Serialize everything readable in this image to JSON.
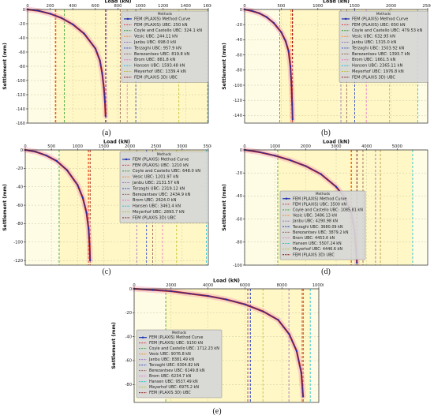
{
  "figure": {
    "captions": [
      "(a)",
      "(b)",
      "(c)",
      "(d)",
      "(e)"
    ]
  },
  "chart_data": [
    {
      "type": "line",
      "panel": "a",
      "xlabel": "Load (kN)",
      "ylabel": "Settlement (mm)",
      "xlim": [
        0,
        1600
      ],
      "ylim": [
        -160,
        0
      ],
      "xticks": [
        0,
        200,
        400,
        600,
        800,
        1000,
        1200,
        1400,
        1600
      ],
      "yticks": [
        0,
        -20,
        -40,
        -60,
        -80,
        -100,
        -120,
        -140,
        -160
      ],
      "grid": true,
      "legend_title": "Methods",
      "legend_position": "top-right",
      "series": [
        {
          "name": "FEM (PLAXIS) Method Curve",
          "x": [
            0,
            100,
            200,
            300,
            400,
            500,
            600,
            640,
            660,
            675,
            685,
            690
          ],
          "y": [
            0,
            -2,
            -6,
            -12,
            -21,
            -34,
            -55,
            -72,
            -90,
            -110,
            -130,
            -150
          ]
        }
      ],
      "reference_lines": [
        {
          "name": "FEM (PLAXIS) UBC: 250 kN",
          "value": 250,
          "color": "#d62728",
          "dash": "3,2"
        },
        {
          "name": "Coyle and Castello UBC: 324.1 kN",
          "value": 324.1,
          "color": "#2ca02c",
          "dash": "3,2"
        },
        {
          "name": "Vesic UBC: 244.11 kN",
          "value": 244.11,
          "color": "#ff7f0e",
          "dash": "3,2"
        },
        {
          "name": "Janbu UBC: 698.0 kN",
          "value": 698.0,
          "color": "#9467bd",
          "dash": "3,2"
        },
        {
          "name": "Terzaghi UBC: 957.9 kN",
          "value": 957.9,
          "color": "#1f3fbf",
          "dash": "3,2"
        },
        {
          "name": "Berezantsev UBC: 819.8 kN",
          "value": 819.8,
          "color": "#8c564b",
          "dash": "3,2"
        },
        {
          "name": "Brom UBC: 881.8 kN",
          "value": 881.8,
          "color": "#e377c2",
          "dash": "3,2"
        },
        {
          "name": "Hansen UBC: 1593.48 kN",
          "value": 1593.48,
          "color": "#17becf",
          "dash": "3,2"
        },
        {
          "name": "Meyerhof UBC: 1339.4 kN",
          "value": 1339.4,
          "color": "#bcbd22",
          "dash": "3,2"
        },
        {
          "name": "FEM (PLAXIS 3D) UBC",
          "value": 690,
          "color": "#8b0000",
          "dash": "3,2"
        }
      ]
    },
    {
      "type": "line",
      "panel": "b",
      "xlabel": "Load (kN)",
      "ylabel": "Settlement (mm)",
      "xlim": [
        0,
        2500
      ],
      "ylim": [
        -150,
        0
      ],
      "xticks": [
        0,
        500,
        1000,
        1500,
        2000,
        2500
      ],
      "yticks": [
        0,
        -20,
        -40,
        -60,
        -80,
        -100,
        -120,
        -140
      ],
      "grid": true,
      "legend_title": "Methods",
      "legend_position": "top-right",
      "series": [
        {
          "name": "FEM (PLAXIS) Method Curve",
          "x": [
            0,
            100,
            200,
            300,
            400,
            500,
            560,
            600,
            625,
            640,
            650,
            655
          ],
          "y": [
            0,
            -2,
            -5,
            -10,
            -18,
            -30,
            -42,
            -55,
            -75,
            -100,
            -125,
            -145
          ]
        }
      ],
      "reference_lines": [
        {
          "name": "FEM (PLAXIS) UBC: 650 kN",
          "value": 650,
          "color": "#d62728",
          "dash": "3,2"
        },
        {
          "name": "Coyle and Castello UBC: 479.53 kN",
          "value": 479.53,
          "color": "#2ca02c",
          "dash": "3,2"
        },
        {
          "name": "Vesic UBC: 632.95 kN",
          "value": 632.95,
          "color": "#ff7f0e",
          "dash": "3,2"
        },
        {
          "name": "Janbu UBC: 1315.0 kN",
          "value": 1315.0,
          "color": "#9467bd",
          "dash": "3,2"
        },
        {
          "name": "Terzaghi UBC: 1503.92 kN",
          "value": 1503.92,
          "color": "#1f3fbf",
          "dash": "3,2"
        },
        {
          "name": "Berezantsev UBC: 1393.7 kN",
          "value": 1393.7,
          "color": "#8c564b",
          "dash": "3,2"
        },
        {
          "name": "Brom UBC: 1661.5 kN",
          "value": 1661.5,
          "color": "#e377c2",
          "dash": "3,2"
        },
        {
          "name": "Hansen UBC: 2365.11 kN",
          "value": 2365.11,
          "color": "#17becf",
          "dash": "3,2"
        },
        {
          "name": "Meyerhof UBC: 1976.8 kN",
          "value": 1976.8,
          "color": "#bcbd22",
          "dash": "3,2"
        },
        {
          "name": "FEM (PLAXIS 3D) UBC",
          "value": 655,
          "color": "#8b0000",
          "dash": "3,2"
        }
      ]
    },
    {
      "type": "line",
      "panel": "c",
      "xlabel": "Load (kN)",
      "ylabel": "Settlement (mm)",
      "xlim": [
        0,
        3500
      ],
      "ylim": [
        -125,
        0
      ],
      "xticks": [
        0,
        500,
        1000,
        1500,
        2000,
        2500,
        3000,
        3500
      ],
      "yticks": [
        0,
        -20,
        -40,
        -60,
        -80,
        -100,
        -120
      ],
      "grid": true,
      "legend_title": "Methods",
      "legend_position": "top-right",
      "series": [
        {
          "name": "FEM (PLAXIS) Method Curve",
          "x": [
            0,
            200,
            400,
            600,
            800,
            1000,
            1100,
            1170,
            1210,
            1230,
            1240
          ],
          "y": [
            0,
            -2,
            -6,
            -12,
            -22,
            -38,
            -52,
            -68,
            -85,
            -102,
            -120
          ]
        }
      ],
      "reference_lines": [
        {
          "name": "FEM (PLAXIS) UBC: 1210 kN",
          "value": 1210,
          "color": "#d62728",
          "dash": "3,2"
        },
        {
          "name": "Coyle and Castello UBC: 648.0 kN",
          "value": 648.0,
          "color": "#2ca02c",
          "dash": "3,2"
        },
        {
          "name": "Vesic UBC: 1201.97 kN",
          "value": 1201.97,
          "color": "#ff7f0e",
          "dash": "3,2"
        },
        {
          "name": "Janbu UBC: 2131.57 kN",
          "value": 2131.57,
          "color": "#9467bd",
          "dash": "3,2"
        },
        {
          "name": "Terzaghi UBC: 2319.12 kN",
          "value": 2319.12,
          "color": "#1f3fbf",
          "dash": "3,2"
        },
        {
          "name": "Berezantsev UBC: 2434.9 kN",
          "value": 2434.9,
          "color": "#8c564b",
          "dash": "3,2"
        },
        {
          "name": "Brom UBC: 2624.0 kN",
          "value": 2624.0,
          "color": "#e377c2",
          "dash": "3,2"
        },
        {
          "name": "Hansen UBC: 3461.4 kN",
          "value": 3461.4,
          "color": "#17becf",
          "dash": "3,2"
        },
        {
          "name": "Meyerhof UBC: 2893.7 kN",
          "value": 2893.7,
          "color": "#bcbd22",
          "dash": "3,2"
        },
        {
          "name": "FEM (PLAXIS 3D) UBC",
          "value": 1240,
          "color": "#8b0000",
          "dash": "3,2"
        }
      ]
    },
    {
      "type": "line",
      "panel": "d",
      "xlabel": "Load (kN)",
      "ylabel": "Settlement (mm)",
      "xlim": [
        0,
        6000
      ],
      "ylim": [
        -100,
        0
      ],
      "xticks": [
        0,
        1000,
        2000,
        3000,
        4000,
        5000
      ],
      "yticks": [
        0,
        -20,
        -40,
        -60,
        -80,
        -100
      ],
      "grid": true,
      "legend_title": "Methods",
      "legend_position": "center",
      "series": [
        {
          "name": "FEM (PLAXIS) Method Curve",
          "x": [
            0,
            500,
            1000,
            1500,
            2000,
            2500,
            3000,
            3300,
            3500,
            3600,
            3650,
            3680
          ],
          "y": [
            0,
            -2,
            -5,
            -9,
            -14,
            -21,
            -32,
            -42,
            -55,
            -70,
            -85,
            -98
          ]
        }
      ],
      "reference_lines": [
        {
          "name": "FEM (PLAXIS) UBC: 3500 kN",
          "value": 3500,
          "color": "#d62728",
          "dash": "3,2"
        },
        {
          "name": "Coyle and Castello UBC: 1085.81 kN",
          "value": 1085.81,
          "color": "#2ca02c",
          "dash": "3,2"
        },
        {
          "name": "Vesic UBC: 3486.13 kN",
          "value": 3486.13,
          "color": "#ff7f0e",
          "dash": "3,2"
        },
        {
          "name": "Janbu UBC: 4290.98 kN",
          "value": 4290.98,
          "color": "#9467bd",
          "dash": "3,2"
        },
        {
          "name": "Terzaghi UBC: 3680.09 kN",
          "value": 3680.09,
          "color": "#1f3fbf",
          "dash": "3,2"
        },
        {
          "name": "Berezantsev UBC: 3879.2 kN",
          "value": 3879.2,
          "color": "#8c564b",
          "dash": "3,2"
        },
        {
          "name": "Brom UBC: 4453.6 kN",
          "value": 4453.6,
          "color": "#e377c2",
          "dash": "3,2"
        },
        {
          "name": "Hansen UBC: 5507.24 kN",
          "value": 5507.24,
          "color": "#17becf",
          "dash": "3,2"
        },
        {
          "name": "Meyerhof UBC: 4446.6 kN",
          "value": 4446.6,
          "color": "#bcbd22",
          "dash": "3,2"
        },
        {
          "name": "FEM (PLAXIS 3D) UBC",
          "value": 3680,
          "color": "#8b0000",
          "dash": "3,2"
        }
      ]
    },
    {
      "type": "line",
      "panel": "e",
      "xlabel": "Load (kN)",
      "ylabel": "Settlement (mm)",
      "xlim": [
        0,
        10000
      ],
      "ylim": [
        -95,
        0
      ],
      "xticks": [
        0,
        2000,
        4000,
        6000,
        8000,
        10000
      ],
      "yticks": [
        0,
        -20,
        -40,
        -60,
        -80
      ],
      "grid": true,
      "legend_title": "Methods",
      "legend_position": "center-left",
      "series": [
        {
          "name": "FEM (PLAXIS) Method Curve",
          "x": [
            0,
            1000,
            2000,
            3000,
            4000,
            5000,
            6000,
            7000,
            7800,
            8400,
            8800,
            9050,
            9150
          ],
          "y": [
            0,
            -1,
            -2,
            -4,
            -6,
            -9,
            -13,
            -19,
            -26,
            -38,
            -52,
            -70,
            -90
          ]
        }
      ],
      "reference_lines": [
        {
          "name": "FEM (PLAXIS) UBC: 9150 kN",
          "value": 9150,
          "color": "#d62728",
          "dash": "3,2"
        },
        {
          "name": "Coyle and Castello UBC: 1712.23 kN",
          "value": 1712.23,
          "color": "#2ca02c",
          "dash": "3,2"
        },
        {
          "name": "Vesic UBC: 9076.8 kN",
          "value": 9076.8,
          "color": "#ff7f0e",
          "dash": "3,2"
        },
        {
          "name": "Janbu UBC: 8381.49 kN",
          "value": 8381.49,
          "color": "#9467bd",
          "dash": "3,2"
        },
        {
          "name": "Terzaghi UBC: 6304.82 kN",
          "value": 6304.82,
          "color": "#1f3fbf",
          "dash": "3,2"
        },
        {
          "name": "Berezantsev UBC: 6149.8 kN",
          "value": 6149.8,
          "color": "#8c564b",
          "dash": "3,2"
        },
        {
          "name": "Brom UBC: 6234.7 kN",
          "value": 6234.7,
          "color": "#e377c2",
          "dash": "3,2"
        },
        {
          "name": "Hansen UBC: 9537.49 kN",
          "value": 9537.49,
          "color": "#17becf",
          "dash": "3,2"
        },
        {
          "name": "Meyerhof UBC: 6975.2 kN",
          "value": 6975.2,
          "color": "#bcbd22",
          "dash": "3,2"
        },
        {
          "name": "FEM (PLAXIS 3D) UBC",
          "value": 9150,
          "color": "#8b0000",
          "dash": "3,2"
        }
      ]
    }
  ]
}
